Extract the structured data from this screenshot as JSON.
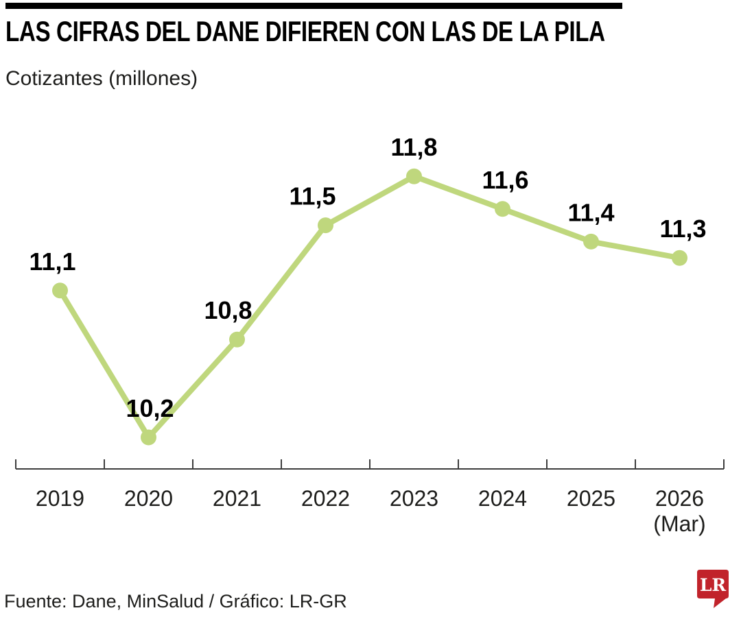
{
  "page": {
    "title": "LAS CIFRAS DEL DANE DIFIEREN CON LAS DE LA PILA",
    "subtitle": "Cotizantes (millones)"
  },
  "chart_data": {
    "type": "line",
    "title": "LAS CIFRAS DEL DANE DIFIEREN CON LAS DE LA PILA",
    "ylabel": "Cotizantes (millones)",
    "xlabel": "",
    "series_name": "Cotizantes",
    "categories": [
      "2019",
      "2020",
      "2021",
      "2022",
      "2023",
      "2024",
      "2025",
      "2026"
    ],
    "x_note": {
      "category_index": 7,
      "text": "(Mar)"
    },
    "values": [
      11.1,
      10.2,
      10.8,
      11.5,
      11.8,
      11.6,
      11.4,
      11.3
    ],
    "value_labels": [
      "11,1",
      "10,2",
      "10,8",
      "11,5",
      "11,8",
      "11,6",
      "11,4",
      "11,3"
    ],
    "ylim": [
      10.0,
      12.0
    ],
    "grid": false,
    "legend_position": "none",
    "y_axis_visible": false,
    "colors": {
      "line": "#bfd77d",
      "marker": "#bfd77d",
      "axis": "#3d3d3d",
      "value_label": "#000000",
      "tick_label": "#1d1d1b"
    }
  },
  "footer": {
    "source": "Fuente: Dane, MinSalud / Gráfico: LR-GR",
    "logo_text": "LR",
    "logo_color": "#c1232b",
    "logo_text_color": "#ffffff"
  }
}
